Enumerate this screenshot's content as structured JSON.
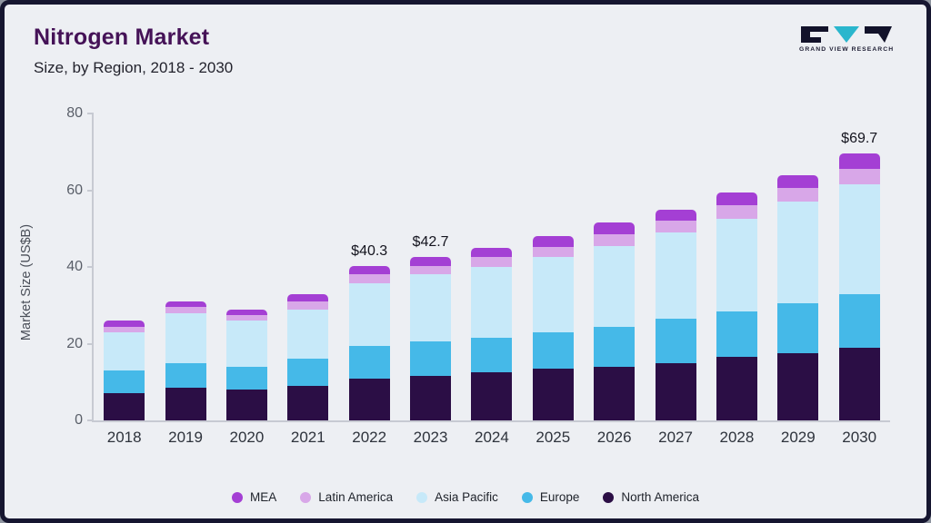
{
  "page": {
    "title": "Nitrogen Market",
    "subtitle": "Size, by Region, 2018 - 2030"
  },
  "logo": {
    "text": "GRAND VIEW RESEARCH",
    "dark_color": "#12122a",
    "teal_color": "#2ab6cd"
  },
  "chart_data": {
    "type": "bar",
    "stacked": true,
    "title": "Nitrogen Market Size, by Region, 2018 - 2030",
    "ylabel": "Market Size (US$B)",
    "xlabel": "",
    "ylim": [
      0,
      80
    ],
    "yticks": [
      0,
      20,
      40,
      60,
      80
    ],
    "grid": false,
    "legend_position": "bottom",
    "categories": [
      "2018",
      "2019",
      "2020",
      "2021",
      "2022",
      "2023",
      "2024",
      "2025",
      "2026",
      "2027",
      "2028",
      "2029",
      "2030"
    ],
    "series": [
      {
        "name": "North America",
        "color": "#2b0e45",
        "values": [
          7.0,
          8.5,
          8.0,
          9.0,
          11.0,
          11.7,
          12.5,
          13.5,
          14.0,
          15.0,
          16.5,
          17.5,
          19.0
        ]
      },
      {
        "name": "Europe",
        "color": "#45b9e8",
        "values": [
          6.0,
          6.5,
          6.0,
          7.0,
          8.5,
          9.0,
          9.0,
          9.5,
          10.5,
          11.5,
          12.0,
          13.0,
          14.0
        ]
      },
      {
        "name": "Asia Pacific",
        "color": "#c7e9f9",
        "values": [
          10.0,
          13.0,
          12.0,
          13.0,
          16.2,
          17.3,
          18.5,
          19.5,
          21.0,
          22.5,
          24.0,
          26.5,
          28.5
        ]
      },
      {
        "name": "Latin America",
        "color": "#d8a7e8",
        "values": [
          1.5,
          1.5,
          1.5,
          2.0,
          2.3,
          2.3,
          2.5,
          2.7,
          3.0,
          3.0,
          3.5,
          3.5,
          4.0
        ]
      },
      {
        "name": "MEA",
        "color": "#a43fd4",
        "values": [
          1.5,
          1.5,
          1.5,
          2.0,
          2.3,
          2.4,
          2.5,
          2.8,
          3.0,
          3.0,
          3.5,
          3.5,
          4.2
        ]
      }
    ],
    "totals": [
      26.0,
      31.0,
      29.0,
      33.0,
      40.3,
      42.7,
      45.0,
      48.0,
      51.5,
      55.0,
      59.5,
      64.0,
      69.7
    ],
    "bar_labels": [
      null,
      null,
      null,
      null,
      "$40.3",
      "$42.7",
      null,
      null,
      null,
      null,
      null,
      null,
      "$69.7"
    ],
    "legend_order": [
      "MEA",
      "Latin America",
      "Asia Pacific",
      "Europe",
      "North America"
    ]
  }
}
